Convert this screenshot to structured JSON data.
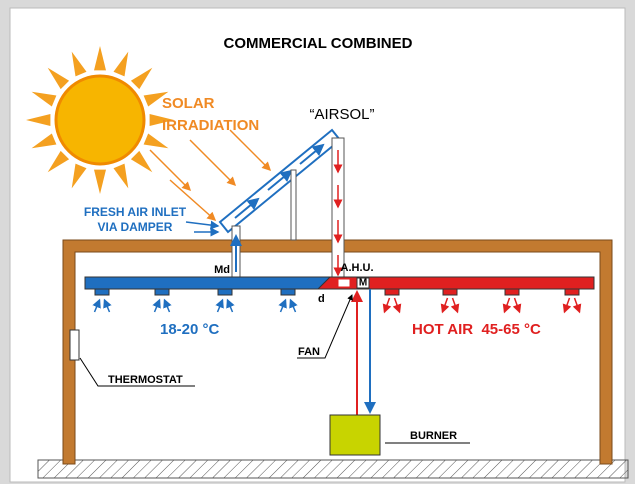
{
  "title": "COMMERCIAL COMBINED",
  "solar": [
    "SOLAR",
    "IRRADIATION"
  ],
  "collector": "“AIRSOL”",
  "inlet": [
    "FRESH AIR INLET",
    "VIA DAMPER"
  ],
  "labels": {
    "damper_main": "Md",
    "ahu": "A.H.U.",
    "damper": "d",
    "motor": "M",
    "fan": "FAN",
    "thermostat": "THERMOSTAT",
    "burner": "BURNER"
  },
  "zones": {
    "cool": "18-20 °C",
    "hot": "HOT AIR  45-65 °C"
  }
}
